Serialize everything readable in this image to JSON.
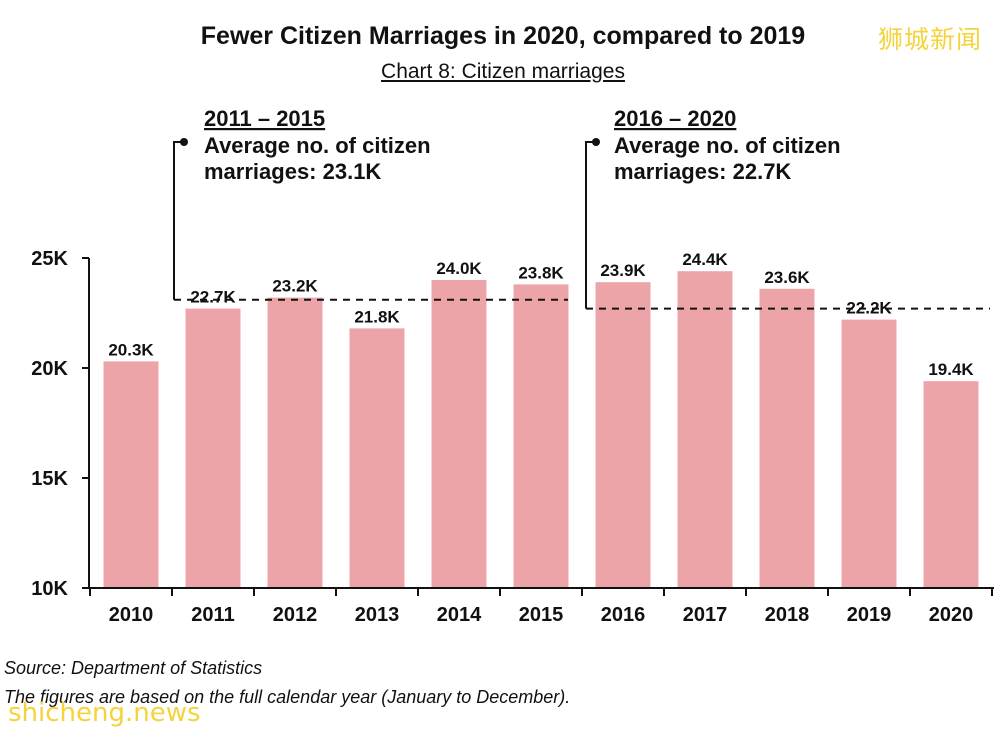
{
  "title": "Fewer Citizen Marriages in 2020, compared to 2019",
  "subtitle": "Chart 8: Citizen marriages",
  "watermark_cn": "狮城新闻",
  "watermark_en": "shicheng.news",
  "source": "Source: Department of Statistics",
  "note": "The figures are based on the full calendar year (January to December).",
  "annotations": [
    {
      "period": "2011 – 2015",
      "line1": "Average no. of citizen",
      "line2": "marriages: 23.1K"
    },
    {
      "period": "2016 – 2020",
      "line1": "Average no. of citizen",
      "line2": "marriages: 22.7K"
    }
  ],
  "colors": {
    "bar": "#eda4a8",
    "axis": "#111111"
  },
  "chart_data": {
    "type": "bar",
    "categories": [
      "2010",
      "2011",
      "2012",
      "2013",
      "2014",
      "2015",
      "2016",
      "2017",
      "2018",
      "2019",
      "2020"
    ],
    "values": [
      20.3,
      22.7,
      23.2,
      21.8,
      24.0,
      23.8,
      23.9,
      24.4,
      23.6,
      22.2,
      19.4
    ],
    "value_labels": [
      "20.3K",
      "22.7K",
      "23.2K",
      "21.8K",
      "24.0K",
      "23.8K",
      "23.9K",
      "24.4K",
      "23.6K",
      "22.2K",
      "19.4K"
    ],
    "yticks": [
      10,
      15,
      20,
      25
    ],
    "ytick_labels": [
      "10K",
      "15K",
      "20K",
      "25K"
    ],
    "ylim": [
      10,
      25
    ],
    "averages": [
      {
        "from": "2011",
        "to": "2015",
        "value": 23.1
      },
      {
        "from": "2016",
        "to": "2020",
        "value": 22.7
      }
    ],
    "grid": false
  }
}
